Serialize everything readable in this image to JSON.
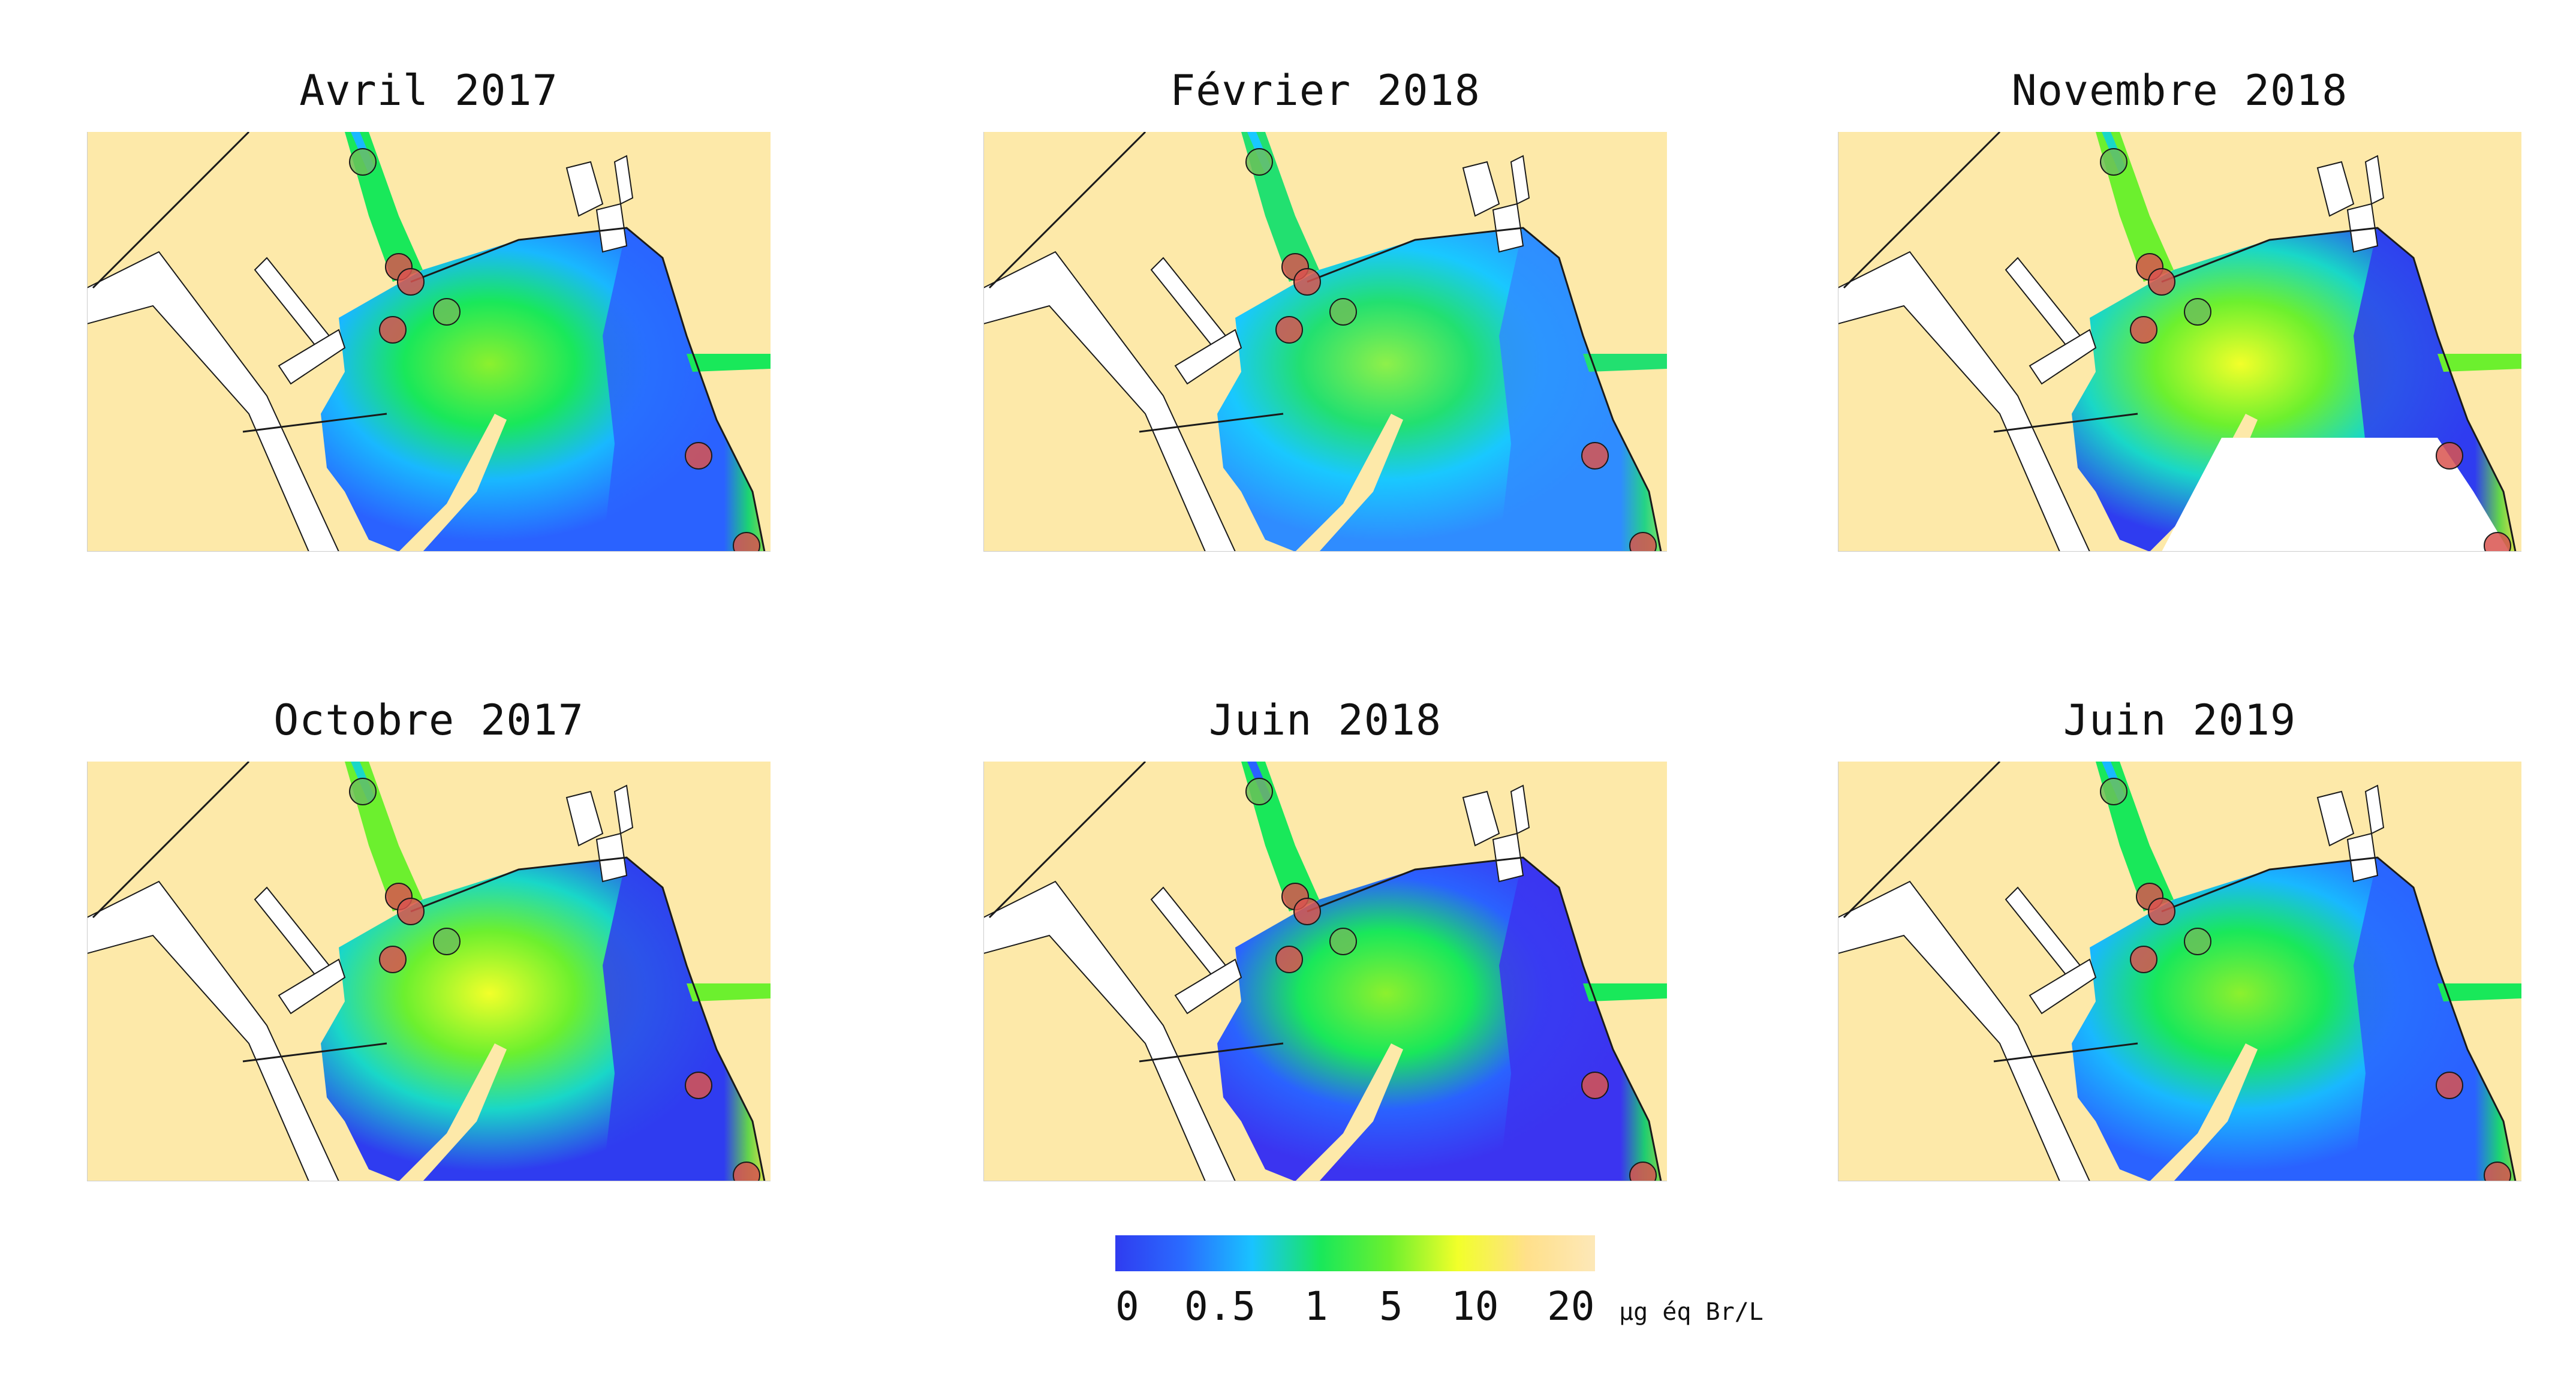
{
  "panels": [
    {
      "title": "Avril 2017",
      "plume": "mid",
      "missing_region": false
    },
    {
      "title": "Février 2018",
      "plume": "spread",
      "missing_region": false
    },
    {
      "title": "Novembre 2018",
      "plume": "strong",
      "missing_region": true
    },
    {
      "title": "Octobre 2017",
      "plume": "strong",
      "missing_region": false
    },
    {
      "title": "Juin 2018",
      "plume": "low",
      "missing_region": false
    },
    {
      "title": "Juin 2019",
      "plume": "mid",
      "missing_region": false
    }
  ],
  "colorbar": {
    "tick_labels": [
      "0",
      "0.5",
      "1",
      "5",
      "10",
      "20"
    ],
    "unit": "µg éq Br/L",
    "colors": [
      "#2f3cf0",
      "#2a6cff",
      "#19c3ff",
      "#19e85a",
      "#6cf02e",
      "#f2ff2a",
      "#ffe08a",
      "#fde8b8"
    ]
  },
  "colors": {
    "land": "#fde9a9",
    "shore": "#1a1a1a",
    "white_area": "#ffffff",
    "marker_red": "#d9534f",
    "marker_green": "#6bbf59"
  }
}
